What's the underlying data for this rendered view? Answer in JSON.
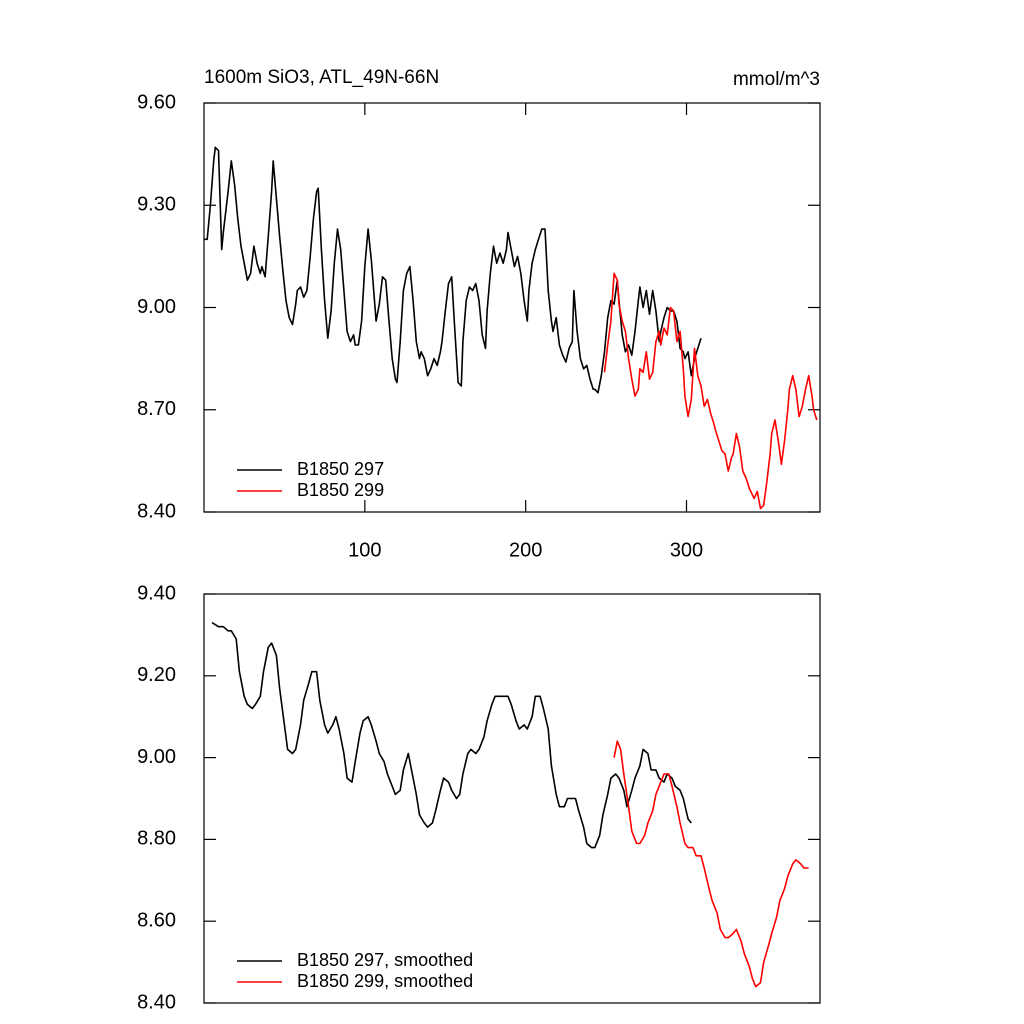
{
  "chart_data": [
    {
      "type": "line",
      "title": "1600m SiO3, ATL_49N-66N",
      "units": "mmol/m^3",
      "xlim": [
        0,
        383
      ],
      "xticks": [
        100,
        200,
        300
      ],
      "ylim": [
        8.4,
        9.6
      ],
      "yticks": [
        {
          "value": 8.4,
          "label": "8.40"
        },
        {
          "value": 8.7,
          "label": "8.70"
        },
        {
          "value": 9.0,
          "label": "9.00"
        },
        {
          "value": 9.3,
          "label": "9.30"
        },
        {
          "value": 9.6,
          "label": "9.60"
        }
      ],
      "legend": "lower left",
      "series": [
        {
          "name": "B1850 297",
          "color": "#000000",
          "x": [
            0,
            2,
            4,
            6,
            7,
            9,
            11,
            12,
            15,
            17,
            19,
            21,
            23,
            25,
            27,
            29,
            31,
            33,
            35,
            36,
            38,
            40,
            42,
            43,
            45,
            47,
            49,
            51,
            53,
            55,
            57,
            58,
            60,
            62,
            64,
            66,
            68,
            70,
            71,
            73,
            75,
            77,
            79,
            81,
            83,
            85,
            87,
            89,
            91,
            93,
            94,
            96,
            98,
            100,
            102,
            104,
            106,
            107,
            109,
            111,
            113,
            115,
            117,
            119,
            120,
            122,
            124,
            126,
            128,
            130,
            132,
            134,
            135,
            137,
            139,
            141,
            143,
            145,
            147,
            148,
            150,
            152,
            154,
            156,
            158,
            160,
            161,
            163,
            165,
            167,
            169,
            171,
            173,
            175,
            176,
            178,
            180,
            182,
            184,
            186,
            188,
            189,
            191,
            193,
            195,
            197,
            199,
            201,
            202,
            204,
            206,
            208,
            210,
            212,
            214,
            216,
            217,
            219,
            221,
            223,
            225,
            227,
            229,
            230,
            232,
            234,
            236,
            238,
            240,
            242,
            243,
            245,
            247,
            249,
            251,
            253,
            255,
            257,
            258,
            260,
            262,
            264,
            266,
            268,
            270,
            271,
            273,
            275,
            277,
            279,
            281,
            283,
            284,
            286,
            288,
            290,
            292,
            294,
            296,
            298,
            299,
            301,
            303,
            305,
            307,
            309
          ],
          "values": [
            9.2,
            9.2,
            9.3,
            9.43,
            9.47,
            9.46,
            9.17,
            9.22,
            9.34,
            9.43,
            9.36,
            9.26,
            9.18,
            9.13,
            9.08,
            9.1,
            9.18,
            9.13,
            9.1,
            9.12,
            9.09,
            9.21,
            9.34,
            9.43,
            9.32,
            9.21,
            9.11,
            9.02,
            8.97,
            8.95,
            9.01,
            9.05,
            9.06,
            9.03,
            9.05,
            9.15,
            9.26,
            9.34,
            9.35,
            9.17,
            9.02,
            8.91,
            8.99,
            9.13,
            9.23,
            9.17,
            9.05,
            8.93,
            8.9,
            8.92,
            8.89,
            8.89,
            8.96,
            9.12,
            9.23,
            9.14,
            9.02,
            8.96,
            9.01,
            9.09,
            9.08,
            8.96,
            8.85,
            8.79,
            8.78,
            8.9,
            9.05,
            9.1,
            9.12,
            9.02,
            8.9,
            8.85,
            8.87,
            8.85,
            8.8,
            8.82,
            8.85,
            8.83,
            8.87,
            8.9,
            8.99,
            9.07,
            9.09,
            8.93,
            8.78,
            8.77,
            8.9,
            9.02,
            9.06,
            9.05,
            9.07,
            9.02,
            8.92,
            8.88,
            8.99,
            9.1,
            9.18,
            9.13,
            9.16,
            9.13,
            9.17,
            9.22,
            9.17,
            9.12,
            9.15,
            9.1,
            9.02,
            8.96,
            9.05,
            9.13,
            9.17,
            9.2,
            9.23,
            9.23,
            9.05,
            8.96,
            8.93,
            8.97,
            8.89,
            8.86,
            8.84,
            8.88,
            8.9,
            9.05,
            8.93,
            8.85,
            8.82,
            8.83,
            8.79,
            8.76,
            8.76,
            8.75,
            8.8,
            8.87,
            8.97,
            9.02,
            9.01,
            9.08,
            9.02,
            8.92,
            8.87,
            8.89,
            8.86,
            8.93,
            9.02,
            9.06,
            9.0,
            9.05,
            8.98,
            9.05,
            8.99,
            8.9,
            8.93,
            8.97,
            9.0,
            8.99,
            8.99,
            8.96,
            8.88,
            8.87,
            8.85,
            8.87,
            8.8,
            8.85,
            8.88,
            8.91
          ]
        },
        {
          "name": "B1850 299",
          "color": "#ff0000",
          "x": [
            249,
            251,
            253,
            255,
            257,
            258,
            260,
            262,
            264,
            266,
            268,
            270,
            271,
            273,
            275,
            277,
            279,
            281,
            283,
            284,
            286,
            288,
            290,
            292,
            294,
            296,
            298,
            299,
            301,
            303,
            305,
            307,
            309,
            311,
            313,
            315,
            317,
            318,
            320,
            322,
            324,
            326,
            328,
            329,
            331,
            333,
            335,
            337,
            339,
            340,
            342,
            344,
            346,
            348,
            350,
            352,
            353,
            355,
            357,
            359,
            361,
            363,
            364,
            366,
            368,
            370,
            372,
            374,
            376,
            378,
            379,
            381
          ],
          "values": [
            8.81,
            8.89,
            8.96,
            9.1,
            9.08,
            9.01,
            8.96,
            8.93,
            8.85,
            8.79,
            8.74,
            8.76,
            8.82,
            8.81,
            8.87,
            8.79,
            8.81,
            8.9,
            8.93,
            8.89,
            8.94,
            8.92,
            9.0,
            8.99,
            8.9,
            8.93,
            8.82,
            8.74,
            8.68,
            8.73,
            8.88,
            8.8,
            8.77,
            8.71,
            8.73,
            8.69,
            8.66,
            8.64,
            8.61,
            8.58,
            8.57,
            8.52,
            8.56,
            8.57,
            8.63,
            8.59,
            8.52,
            8.5,
            8.47,
            8.46,
            8.44,
            8.46,
            8.41,
            8.42,
            8.49,
            8.57,
            8.63,
            8.67,
            8.61,
            8.54,
            8.61,
            8.7,
            8.76,
            8.8,
            8.76,
            8.68,
            8.71,
            8.76,
            8.8,
            8.74,
            8.7,
            8.67
          ]
        }
      ]
    },
    {
      "type": "line",
      "xlim": [
        0,
        383
      ],
      "ylim": [
        8.4,
        9.4
      ],
      "yticks": [
        {
          "value": 8.4,
          "label": "8.40"
        },
        {
          "value": 8.6,
          "label": "8.60"
        },
        {
          "value": 8.8,
          "label": "8.80"
        },
        {
          "value": 9.0,
          "label": "9.00"
        },
        {
          "value": 9.2,
          "label": "9.20"
        },
        {
          "value": 9.4,
          "label": "9.40"
        }
      ],
      "legend": "lower left",
      "series": [
        {
          "name": "B1850 297, smoothed",
          "color": "#000000",
          "x": [
            5,
            9,
            12,
            15,
            17,
            20,
            22,
            25,
            27,
            30,
            32,
            35,
            37,
            40,
            42,
            45,
            47,
            50,
            52,
            55,
            57,
            60,
            62,
            65,
            67,
            70,
            72,
            75,
            77,
            80,
            82,
            84,
            87,
            89,
            92,
            94,
            97,
            99,
            102,
            104,
            107,
            109,
            112,
            114,
            117,
            119,
            122,
            124,
            127,
            129,
            132,
            134,
            137,
            139,
            142,
            144,
            147,
            149,
            152,
            154,
            157,
            159,
            161,
            164,
            166,
            169,
            171,
            174,
            176,
            179,
            181,
            184,
            186,
            189,
            191,
            194,
            196,
            199,
            201,
            204,
            206,
            209,
            211,
            214,
            216,
            219,
            221,
            224,
            226,
            229,
            231,
            233,
            236,
            238,
            241,
            243,
            246,
            248,
            251,
            253,
            256,
            258,
            261,
            263,
            266,
            268,
            271,
            273,
            276,
            278,
            281,
            283,
            286,
            288,
            291,
            293,
            296,
            298,
            301,
            303
          ],
          "values": [
            9.33,
            9.32,
            9.32,
            9.31,
            9.31,
            9.29,
            9.21,
            9.15,
            9.13,
            9.12,
            9.13,
            9.15,
            9.21,
            9.27,
            9.28,
            9.25,
            9.17,
            9.08,
            9.02,
            9.01,
            9.02,
            9.08,
            9.14,
            9.18,
            9.21,
            9.21,
            9.14,
            9.08,
            9.06,
            9.08,
            9.1,
            9.07,
            9.01,
            8.95,
            8.94,
            8.99,
            9.06,
            9.09,
            9.1,
            9.08,
            9.04,
            9.01,
            8.99,
            8.96,
            8.93,
            8.91,
            8.92,
            8.97,
            9.01,
            8.97,
            8.91,
            8.86,
            8.84,
            8.83,
            8.84,
            8.87,
            8.92,
            8.95,
            8.94,
            8.92,
            8.9,
            8.91,
            8.96,
            9.01,
            9.02,
            9.01,
            9.02,
            9.05,
            9.09,
            9.13,
            9.15,
            9.15,
            9.15,
            9.15,
            9.13,
            9.09,
            9.07,
            9.08,
            9.07,
            9.1,
            9.15,
            9.15,
            9.12,
            9.07,
            8.98,
            8.91,
            8.88,
            8.88,
            8.9,
            8.9,
            8.9,
            8.87,
            8.83,
            8.79,
            8.78,
            8.78,
            8.81,
            8.86,
            8.91,
            8.95,
            8.96,
            8.95,
            8.92,
            8.88,
            8.92,
            8.95,
            8.98,
            9.02,
            9.01,
            8.97,
            8.97,
            8.95,
            8.94,
            8.96,
            8.95,
            8.93,
            8.92,
            8.9,
            8.85,
            8.84
          ]
        },
        {
          "name": "B1850 299, smoothed",
          "color": "#ff0000",
          "x": [
            255,
            257,
            259,
            261,
            264,
            266,
            269,
            271,
            274,
            276,
            279,
            281,
            284,
            286,
            289,
            291,
            294,
            296,
            299,
            301,
            304,
            306,
            309,
            311,
            314,
            316,
            319,
            321,
            324,
            326,
            329,
            331,
            334,
            336,
            339,
            341,
            343,
            346,
            348,
            351,
            353,
            356,
            358,
            361,
            363,
            366,
            368,
            371,
            373,
            376
          ],
          "values": [
            9.0,
            9.04,
            9.02,
            8.96,
            8.88,
            8.82,
            8.79,
            8.79,
            8.81,
            8.84,
            8.87,
            8.91,
            8.94,
            8.96,
            8.96,
            8.93,
            8.88,
            8.84,
            8.79,
            8.78,
            8.78,
            8.76,
            8.76,
            8.73,
            8.68,
            8.65,
            8.62,
            8.58,
            8.56,
            8.56,
            8.57,
            8.58,
            8.55,
            8.52,
            8.49,
            8.46,
            8.44,
            8.45,
            8.5,
            8.54,
            8.57,
            8.61,
            8.65,
            8.68,
            8.71,
            8.74,
            8.75,
            8.74,
            8.73,
            8.73
          ]
        }
      ]
    }
  ]
}
